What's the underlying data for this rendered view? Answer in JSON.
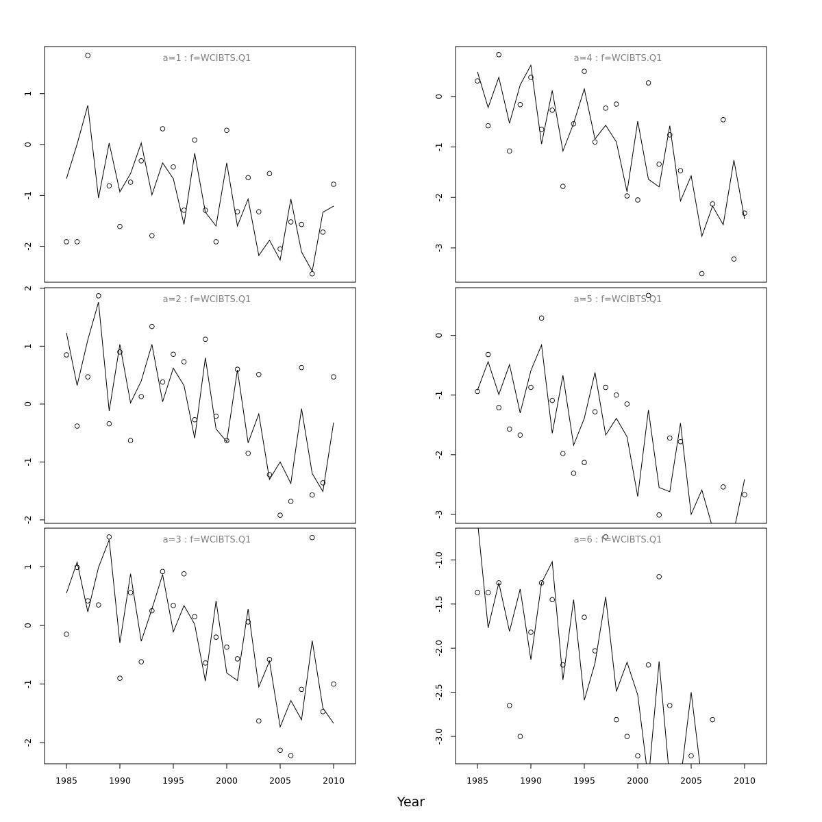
{
  "chart_data": [
    {
      "type": "line+scatter",
      "title": "a=1  :  f=WCIBTS.Q1",
      "xlim": [
        1983,
        2012
      ],
      "ylim": [
        -2.705,
        1.925
      ],
      "yticks": [
        -2,
        -1,
        0,
        1
      ],
      "xticks": [],
      "x": [
        1985,
        1986,
        1987,
        1988,
        1989,
        1990,
        1991,
        1992,
        1993,
        1994,
        1995,
        1996,
        1997,
        1998,
        1999,
        2000,
        2001,
        2002,
        2003,
        2004,
        2005,
        2006,
        2007,
        2008,
        2009,
        2010
      ],
      "points": [
        -1.91,
        -1.91,
        1.75,
        null,
        -0.81,
        -1.61,
        -0.74,
        -0.32,
        -1.79,
        0.31,
        -0.44,
        -1.29,
        0.09,
        -1.29,
        -1.91,
        0.28,
        -1.32,
        -0.65,
        -1.32,
        -0.57,
        -2.05,
        -1.52,
        -1.57,
        -2.54,
        -1.72,
        -0.78
      ],
      "line": [
        -0.67,
        0.01,
        0.77,
        -1.05,
        0.03,
        -0.93,
        -0.57,
        0.03,
        -0.99,
        -0.36,
        -0.67,
        -1.57,
        -0.17,
        -1.33,
        -1.6,
        -0.36,
        -1.6,
        -1.07,
        -2.18,
        -1.88,
        -2.27,
        -1.07,
        -2.11,
        -2.49,
        -1.33,
        -1.21
      ]
    },
    {
      "type": "line+scatter",
      "title": "a=4  :  f=WCIBTS.Q1",
      "xlim": [
        1983,
        2012
      ],
      "ylim": [
        -3.68,
        0.99
      ],
      "yticks": [
        -3,
        -2,
        -1,
        0
      ],
      "xticks": [],
      "x": [
        1985,
        1986,
        1987,
        1988,
        1989,
        1990,
        1991,
        1992,
        1993,
        1994,
        1995,
        1996,
        1997,
        1998,
        1999,
        2000,
        2001,
        2002,
        2003,
        2004,
        2005,
        2006,
        2007,
        2008,
        2009,
        2010
      ],
      "points": [
        0.31,
        -0.58,
        0.83,
        -1.08,
        -0.16,
        0.38,
        -0.65,
        -0.27,
        -1.78,
        -0.54,
        0.5,
        -0.9,
        -0.23,
        -0.15,
        -1.97,
        -2.05,
        0.27,
        -1.34,
        -0.76,
        -1.47,
        null,
        -3.51,
        -2.13,
        -0.46,
        -3.22,
        -2.31
      ],
      "line": [
        0.49,
        -0.22,
        0.38,
        -0.53,
        0.23,
        0.62,
        -0.94,
        0.12,
        -1.08,
        -0.53,
        0.15,
        -0.84,
        -0.57,
        -0.9,
        -1.89,
        -0.49,
        -1.64,
        -1.79,
        -0.58,
        -2.07,
        -1.57,
        -2.77,
        -2.17,
        -2.54,
        -1.26,
        -2.43
      ]
    },
    {
      "type": "line+scatter",
      "title": "a=2  :  f=WCIBTS.Q1",
      "xlim": [
        1983,
        2012
      ],
      "ylim": [
        -2.06,
        2.01
      ],
      "yticks": [
        -2,
        -1,
        0,
        1,
        2
      ],
      "xticks": [],
      "x": [
        1985,
        1986,
        1987,
        1988,
        1989,
        1990,
        1991,
        1992,
        1993,
        1994,
        1995,
        1996,
        1997,
        1998,
        1999,
        2000,
        2001,
        2002,
        2003,
        2004,
        2005,
        2006,
        2007,
        2008,
        2009,
        2010
      ],
      "points": [
        0.85,
        -0.38,
        0.47,
        1.87,
        -0.34,
        0.9,
        -0.63,
        0.13,
        1.34,
        0.38,
        0.86,
        0.73,
        -0.27,
        1.12,
        -0.21,
        -0.63,
        0.6,
        -0.85,
        0.51,
        -1.22,
        -1.92,
        -1.68,
        0.63,
        -1.57,
        -1.36,
        0.47
      ],
      "line": [
        1.23,
        0.32,
        1.11,
        1.76,
        -0.12,
        1.03,
        0.02,
        0.4,
        1.03,
        0.04,
        0.62,
        0.32,
        -0.59,
        0.8,
        -0.43,
        -0.65,
        0.59,
        -0.67,
        -0.17,
        -1.3,
        -1.0,
        -1.37,
        -0.08,
        -1.2,
        -1.51,
        -0.32
      ]
    },
    {
      "type": "line+scatter",
      "title": "a=5  :  f=WCIBTS.Q1",
      "xlim": [
        1983,
        2012
      ],
      "ylim": [
        -3.15,
        0.8
      ],
      "yticks": [
        -3,
        -2,
        -1,
        0
      ],
      "xticks": [],
      "x": [
        1985,
        1986,
        1987,
        1988,
        1989,
        1990,
        1991,
        1992,
        1993,
        1994,
        1995,
        1996,
        1997,
        1998,
        1999,
        2000,
        2001,
        2002,
        2003,
        2004,
        2005,
        2006,
        2007,
        2008,
        2009,
        2010
      ],
      "points": [
        -0.94,
        -0.32,
        -1.21,
        -1.57,
        -1.67,
        -0.87,
        0.29,
        -1.09,
        -1.98,
        -2.31,
        -2.13,
        -1.28,
        -0.87,
        -1.0,
        -1.15,
        null,
        0.67,
        -3.01,
        -1.72,
        -1.78,
        null,
        null,
        null,
        -2.54,
        null,
        -2.67
      ],
      "line": [
        -0.92,
        -0.44,
        -0.99,
        -0.49,
        -1.3,
        -0.59,
        -0.16,
        -1.64,
        -0.67,
        -1.84,
        -1.39,
        -0.62,
        -1.67,
        -1.39,
        -1.7,
        -2.7,
        -1.25,
        -2.55,
        -2.62,
        -1.47,
        -3.0,
        -2.59,
        -3.22,
        -3.16,
        -3.28,
        -2.41
      ]
    },
    {
      "type": "line+scatter",
      "title": "a=3  :  f=WCIBTS.Q1",
      "xlim": [
        1983,
        2012
      ],
      "ylim": [
        -2.36,
        1.66
      ],
      "yticks": [
        -2,
        -1,
        0,
        1
      ],
      "xticks": [
        1985,
        1990,
        1995,
        2000,
        2005,
        2010
      ],
      "x": [
        1985,
        1986,
        1987,
        1988,
        1989,
        1990,
        1991,
        1992,
        1993,
        1994,
        1995,
        1996,
        1997,
        1998,
        1999,
        2000,
        2001,
        2002,
        2003,
        2004,
        2005,
        2006,
        2007,
        2008,
        2009,
        2010
      ],
      "points": [
        -0.15,
        0.99,
        0.42,
        0.35,
        1.51,
        -0.9,
        0.56,
        -0.62,
        0.25,
        0.92,
        0.34,
        0.88,
        0.15,
        -0.64,
        -0.2,
        -0.37,
        -0.57,
        0.06,
        -1.63,
        -0.58,
        -2.13,
        -2.22,
        -1.09,
        1.5,
        -1.47,
        -1.0
      ],
      "line": [
        0.55,
        1.08,
        0.23,
        0.99,
        1.46,
        -0.3,
        0.88,
        -0.27,
        0.28,
        0.87,
        -0.11,
        0.34,
        0.02,
        -0.95,
        0.42,
        -0.81,
        -0.94,
        0.28,
        -1.05,
        -0.61,
        -1.73,
        -1.28,
        -1.61,
        -0.26,
        -1.41,
        -1.67
      ]
    },
    {
      "type": "line+scatter",
      "title": "a=6  :  f=WCIBTS.Q1",
      "xlim": [
        1983,
        2012
      ],
      "ylim": [
        -3.31,
        -0.64
      ],
      "yticks": [
        -3.0,
        -2.5,
        -2.0,
        -1.5,
        -1.0
      ],
      "xticks": [
        1985,
        1990,
        1995,
        2000,
        2005,
        2010
      ],
      "x": [
        1985,
        1986,
        1987,
        1988,
        1989,
        1990,
        1991,
        1992,
        1993,
        1994,
        1995,
        1996,
        1997,
        1998,
        1999,
        2000,
        2001,
        2002,
        2003,
        2004,
        2005,
        2006,
        2007,
        2008,
        2009,
        2010
      ],
      "points": [
        -1.37,
        -1.37,
        -1.26,
        -2.65,
        -3.0,
        -1.82,
        -1.26,
        -1.45,
        -2.19,
        null,
        -1.65,
        -2.03,
        -0.74,
        -2.81,
        -3.0,
        -3.22,
        -2.19,
        -1.19,
        -2.65,
        null,
        -3.22,
        null,
        -2.81,
        null,
        null,
        null
      ],
      "line": [
        -0.55,
        -1.77,
        -1.26,
        -1.81,
        -1.33,
        -2.13,
        -1.26,
        -1.02,
        -2.36,
        -1.45,
        -2.59,
        -2.17,
        -1.42,
        -2.49,
        -2.16,
        -2.53,
        -3.5,
        -2.15,
        -3.5,
        -3.5,
        -2.5,
        -3.5,
        -3.6,
        -3.6,
        -3.6,
        -3.6
      ]
    }
  ],
  "xlabel": "Year"
}
